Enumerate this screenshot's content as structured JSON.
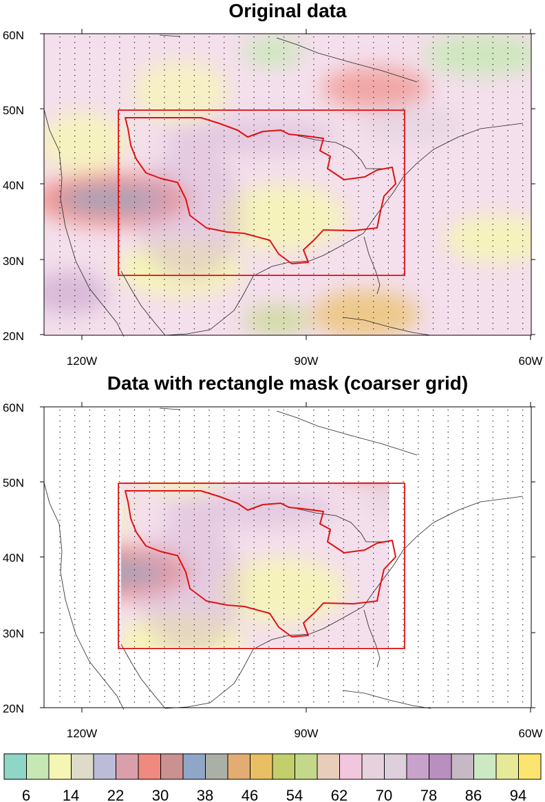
{
  "chart_data": [
    {
      "type": "heatmap",
      "title": "Original data",
      "lat_ticks": [
        "60N",
        "50N",
        "40N",
        "30N",
        "20N"
      ],
      "lon_ticks": [
        "120W",
        "90W",
        "60W"
      ],
      "lat_range": [
        20,
        60
      ],
      "lon_range": [
        -125,
        -60
      ],
      "mask_rectangle": {
        "lon": [
          -115,
          -77
        ],
        "lat": [
          28,
          50
        ]
      },
      "mask_applied": false
    },
    {
      "type": "heatmap",
      "title": "Data with rectangle mask (coarser grid)",
      "lat_ticks": [
        "60N",
        "50N",
        "40N",
        "30N",
        "20N"
      ],
      "lon_ticks": [
        "120W",
        "90W",
        "60W"
      ],
      "lat_range": [
        20,
        60
      ],
      "lon_range": [
        -125,
        -60
      ],
      "mask_rectangle": {
        "lon": [
          -115,
          -77
        ],
        "lat": [
          28,
          50
        ]
      },
      "mask_applied": true
    }
  ],
  "colorbar": {
    "colors": [
      "#8fd6c6",
      "#c6e8b4",
      "#f6f6b4",
      "#dedcc8",
      "#bcbcd8",
      "#d9a0ab",
      "#f08a80",
      "#cb9090",
      "#90a6c6",
      "#aab0a6",
      "#e2ad73",
      "#e9bf63",
      "#c2cf6a",
      "#c4d889",
      "#e8cdbb",
      "#f2c6dc",
      "#e6d2dd",
      "#ddcfdb",
      "#c8a2cb",
      "#b98fbf",
      "#c6b8c4",
      "#cce9c4",
      "#e6ea98",
      "#fbe570"
    ],
    "labels": [
      "6",
      "14",
      "22",
      "30",
      "38",
      "46",
      "54",
      "62",
      "70",
      "78",
      "86",
      "94"
    ]
  }
}
